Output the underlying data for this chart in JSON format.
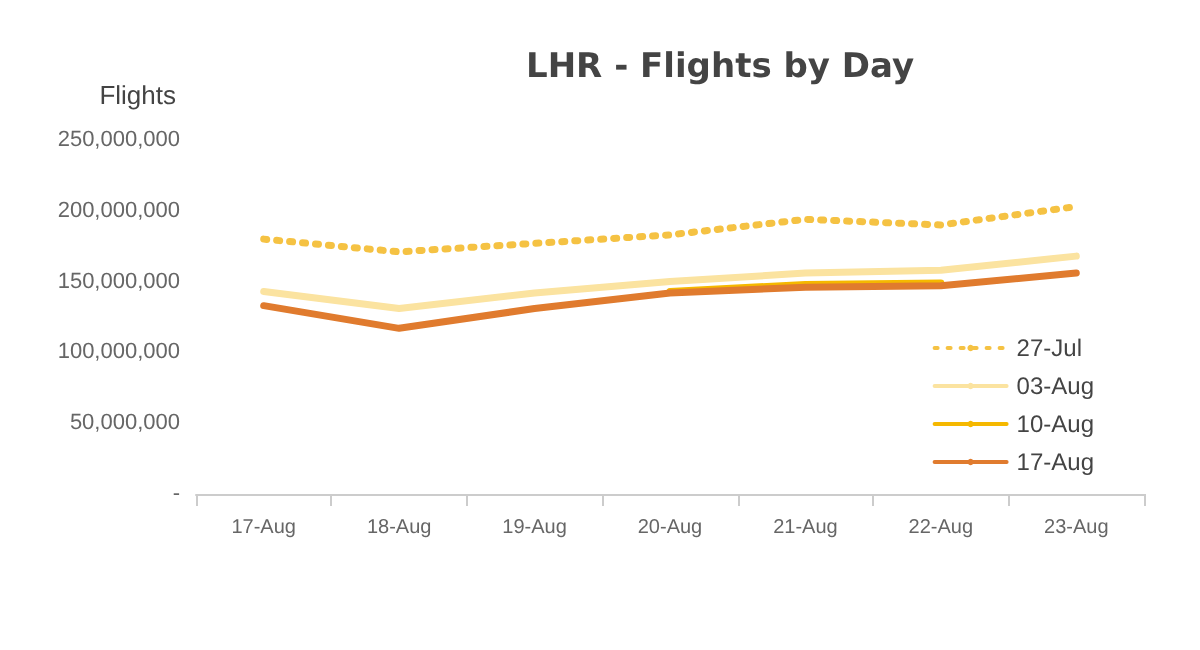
{
  "chart_data": {
    "type": "line",
    "title": "LHR - Flights by Day",
    "ylabel": "Flights",
    "categories": [
      "17-Aug",
      "18-Aug",
      "19-Aug",
      "20-Aug",
      "21-Aug",
      "22-Aug",
      "23-Aug"
    ],
    "series": [
      {
        "name": "27-Jul",
        "color": "#f5c243",
        "line_style": "dotted",
        "values": [
          180000000,
          171000000,
          177000000,
          183000000,
          194000000,
          190000000,
          203000000
        ]
      },
      {
        "name": "03-Aug",
        "color": "#fbe3a0",
        "values": [
          143000000,
          131000000,
          142000000,
          150000000,
          156000000,
          158000000,
          168000000
        ]
      },
      {
        "name": "10-Aug",
        "color": "#f5b800",
        "values": [
          null,
          null,
          null,
          143000000,
          148000000,
          149000000,
          null
        ]
      },
      {
        "name": "17-Aug",
        "color": "#e07b2e",
        "values": [
          133000000,
          117000000,
          131000000,
          142000000,
          146000000,
          147000000,
          156000000
        ]
      }
    ],
    "ylim": [
      0,
      250000000
    ],
    "yticks": [
      {
        "value": 0,
        "label": "-"
      },
      {
        "value": 50000000,
        "label": "50,000,000"
      },
      {
        "value": 100000000,
        "label": "100,000,000"
      },
      {
        "value": 150000000,
        "label": "150,000,000"
      },
      {
        "value": 200000000,
        "label": "200,000,000"
      },
      {
        "value": 250000000,
        "label": "250,000,000"
      }
    ],
    "grid": false,
    "legend": "right",
    "marker": "none",
    "line_style": "solid"
  }
}
